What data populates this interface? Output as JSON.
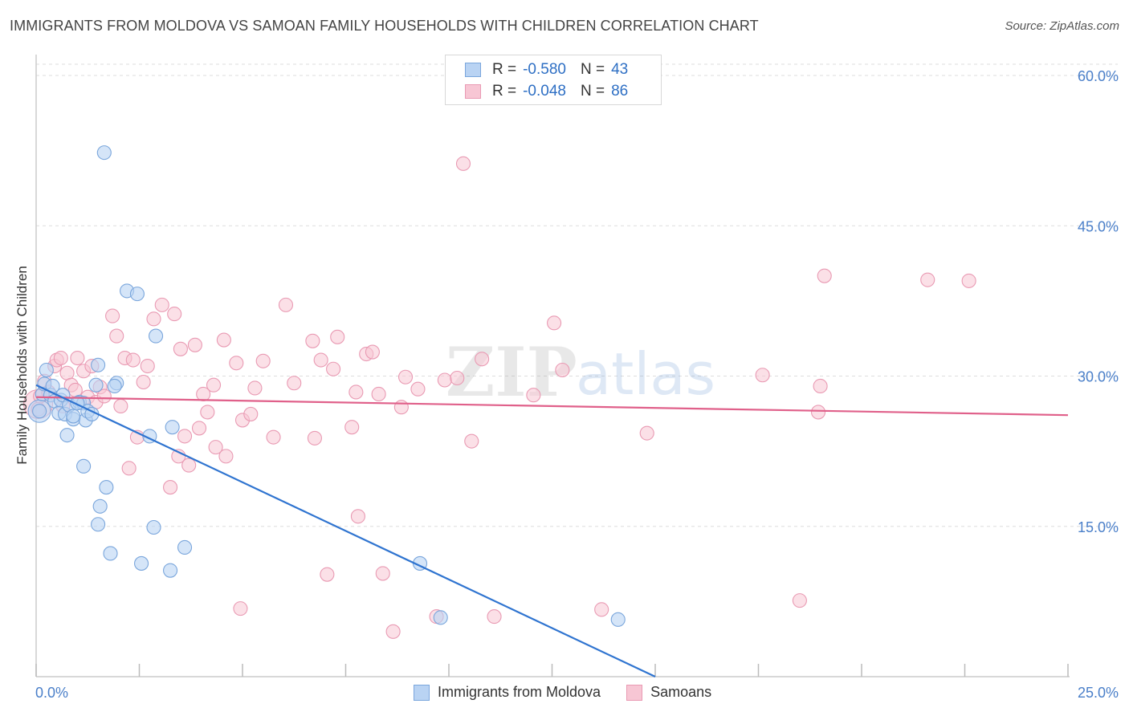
{
  "title": "IMMIGRANTS FROM MOLDOVA VS SAMOAN FAMILY HOUSEHOLDS WITH CHILDREN CORRELATION CHART",
  "source": "Source: ZipAtlas.com",
  "watermark": {
    "zip": "ZIP",
    "atlas": "atlas"
  },
  "legend_top": [
    {
      "r_label": "R =",
      "r_value": "-0.580",
      "n_label": "N =",
      "n_value": "43"
    },
    {
      "r_label": "R =",
      "r_value": "-0.048",
      "n_label": "N =",
      "n_value": "86"
    }
  ],
  "legend_bottom": [
    "Immigrants from Moldova",
    "Samoans"
  ],
  "colors": {
    "blue_fill": "#b9d3f3",
    "blue_stroke": "#7aa6dc",
    "blue_line": "#2f74d0",
    "pink_fill": "#f7c6d4",
    "pink_stroke": "#e99ab3",
    "pink_line": "#e0608a",
    "tick_label": "#4a7fc9",
    "grid": "#dddddd"
  },
  "chart_data": {
    "type": "scatter",
    "title": "IMMIGRANTS FROM MOLDOVA VS SAMOAN FAMILY HOUSEHOLDS WITH CHILDREN CORRELATION CHART",
    "xlabel": "",
    "ylabel": "Family Households with Children",
    "xlim": [
      0,
      25
    ],
    "ylim": [
      0,
      60
    ],
    "x_tick_labels": [
      "0.0%",
      "25.0%"
    ],
    "y_ticks": [
      15,
      30,
      45,
      60
    ],
    "y_tick_labels": [
      "15.0%",
      "30.0%",
      "45.0%",
      "60.0%"
    ],
    "grid": true,
    "series": [
      {
        "name": "Immigrants from Moldova",
        "color": "blue",
        "r": -0.58,
        "n": 43,
        "points": [
          [
            0.08,
            26.5
          ],
          [
            0.15,
            28.2
          ],
          [
            0.2,
            29.2
          ],
          [
            0.25,
            30.6
          ],
          [
            0.35,
            28.1
          ],
          [
            0.4,
            29.0
          ],
          [
            0.45,
            27.5
          ],
          [
            0.55,
            26.3
          ],
          [
            0.6,
            27.6
          ],
          [
            0.65,
            28.1
          ],
          [
            0.7,
            26.2
          ],
          [
            0.75,
            24.1
          ],
          [
            0.8,
            27.1
          ],
          [
            0.9,
            25.7
          ],
          [
            1.05,
            27.4
          ],
          [
            1.15,
            27.3
          ],
          [
            1.2,
            25.6
          ],
          [
            1.25,
            26.5
          ],
          [
            1.35,
            26.2
          ],
          [
            1.45,
            29.1
          ],
          [
            1.5,
            31.1
          ],
          [
            1.65,
            52.3
          ],
          [
            1.95,
            29.3
          ],
          [
            1.9,
            29.0
          ],
          [
            2.2,
            38.5
          ],
          [
            2.45,
            38.2
          ],
          [
            2.9,
            34.0
          ],
          [
            2.75,
            24.0
          ],
          [
            3.3,
            24.9
          ],
          [
            1.15,
            21.0
          ],
          [
            1.7,
            18.9
          ],
          [
            1.55,
            17.0
          ],
          [
            1.5,
            15.2
          ],
          [
            2.85,
            14.9
          ],
          [
            3.6,
            12.9
          ],
          [
            1.8,
            12.3
          ],
          [
            2.55,
            11.3
          ],
          [
            3.25,
            10.6
          ],
          [
            9.3,
            11.3
          ],
          [
            9.8,
            5.9
          ],
          [
            14.1,
            5.7
          ],
          [
            0.9,
            26.0
          ],
          [
            1.0,
            27.3
          ]
        ],
        "trend": {
          "x": [
            0.0,
            15.0
          ],
          "y": [
            29.1,
            0.0
          ]
        }
      },
      {
        "name": "Samoans",
        "color": "pink",
        "r": -0.048,
        "n": 86,
        "points": [
          [
            0.05,
            26.7
          ],
          [
            0.1,
            28.0
          ],
          [
            0.2,
            29.5
          ],
          [
            0.3,
            28.4
          ],
          [
            0.45,
            31.0
          ],
          [
            0.5,
            31.6
          ],
          [
            0.6,
            31.8
          ],
          [
            0.65,
            27.0
          ],
          [
            0.75,
            30.3
          ],
          [
            0.85,
            29.1
          ],
          [
            0.95,
            28.6
          ],
          [
            1.0,
            31.8
          ],
          [
            1.15,
            30.5
          ],
          [
            1.25,
            27.9
          ],
          [
            1.35,
            31.0
          ],
          [
            1.45,
            27.4
          ],
          [
            1.55,
            28.9
          ],
          [
            1.65,
            28.0
          ],
          [
            1.85,
            36.0
          ],
          [
            1.95,
            34.0
          ],
          [
            2.05,
            27.0
          ],
          [
            2.15,
            31.8
          ],
          [
            2.25,
            20.8
          ],
          [
            2.35,
            31.6
          ],
          [
            2.45,
            23.9
          ],
          [
            2.6,
            29.4
          ],
          [
            2.7,
            31.0
          ],
          [
            2.85,
            35.7
          ],
          [
            3.05,
            37.1
          ],
          [
            3.25,
            18.9
          ],
          [
            3.35,
            36.2
          ],
          [
            3.45,
            22.0
          ],
          [
            3.5,
            32.7
          ],
          [
            3.6,
            24.0
          ],
          [
            3.7,
            21.1
          ],
          [
            3.85,
            33.1
          ],
          [
            3.95,
            24.8
          ],
          [
            4.05,
            28.2
          ],
          [
            4.15,
            26.4
          ],
          [
            4.3,
            29.1
          ],
          [
            4.35,
            22.9
          ],
          [
            4.55,
            33.6
          ],
          [
            4.6,
            22.0
          ],
          [
            4.85,
            31.3
          ],
          [
            4.95,
            6.8
          ],
          [
            5.0,
            25.6
          ],
          [
            5.2,
            26.2
          ],
          [
            5.3,
            28.8
          ],
          [
            5.5,
            31.5
          ],
          [
            5.75,
            23.9
          ],
          [
            6.05,
            37.1
          ],
          [
            6.25,
            29.3
          ],
          [
            6.7,
            33.5
          ],
          [
            6.75,
            23.8
          ],
          [
            6.9,
            31.6
          ],
          [
            7.05,
            10.2
          ],
          [
            7.2,
            30.7
          ],
          [
            7.3,
            33.9
          ],
          [
            7.65,
            24.9
          ],
          [
            7.75,
            28.4
          ],
          [
            7.8,
            16.0
          ],
          [
            8.0,
            32.2
          ],
          [
            8.15,
            32.4
          ],
          [
            8.3,
            28.2
          ],
          [
            8.4,
            10.3
          ],
          [
            8.65,
            4.5
          ],
          [
            8.85,
            26.9
          ],
          [
            8.95,
            29.9
          ],
          [
            9.25,
            28.7
          ],
          [
            9.7,
            6.0
          ],
          [
            9.9,
            29.6
          ],
          [
            10.2,
            29.8
          ],
          [
            10.35,
            51.2
          ],
          [
            10.55,
            23.5
          ],
          [
            10.8,
            31.7
          ],
          [
            11.1,
            6.0
          ],
          [
            12.05,
            28.1
          ],
          [
            12.55,
            35.3
          ],
          [
            12.75,
            30.6
          ],
          [
            13.7,
            6.7
          ],
          [
            14.8,
            24.3
          ],
          [
            17.6,
            30.1
          ],
          [
            18.5,
            7.6
          ],
          [
            18.95,
            26.4
          ],
          [
            19.0,
            29.0
          ],
          [
            19.1,
            40.0
          ]
        ],
        "extra_points": [
          [
            21.6,
            39.6
          ],
          [
            22.6,
            39.5
          ]
        ],
        "trend": {
          "x": [
            0.0,
            25.0
          ],
          "y": [
            27.9,
            26.1
          ]
        }
      }
    ]
  }
}
